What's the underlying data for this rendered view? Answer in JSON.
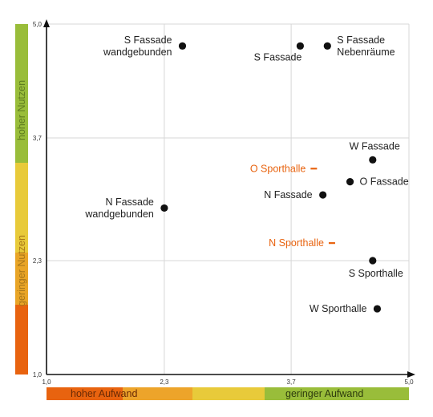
{
  "chart_data": {
    "type": "scatter",
    "title": "",
    "xlabel": "",
    "ylabel": "",
    "xlim": [
      1.0,
      5.0
    ],
    "ylim": [
      1.0,
      5.0
    ],
    "x_ticks": [
      {
        "value": 1.0,
        "label": "1,0"
      },
      {
        "value": 2.3,
        "label": "2,3"
      },
      {
        "value": 3.7,
        "label": "3,7"
      },
      {
        "value": 5.0,
        "label": "5,0"
      }
    ],
    "y_ticks": [
      {
        "value": 1.0,
        "label": "1,0"
      },
      {
        "value": 2.3,
        "label": "2,3"
      },
      {
        "value": 3.7,
        "label": "3,7"
      },
      {
        "value": 5.0,
        "label": "5,0"
      }
    ],
    "grid": true,
    "points": [
      {
        "label": [
          "S Fassade",
          "wandgebunden"
        ],
        "x": 2.5,
        "y": 4.75,
        "label_side": "left"
      },
      {
        "label": [
          "S Fassade"
        ],
        "x": 3.8,
        "y": 4.75,
        "label_side": "below-left"
      },
      {
        "label": [
          "S Fassade",
          "Nebenräume"
        ],
        "x": 4.1,
        "y": 4.75,
        "label_side": "right"
      },
      {
        "label": [
          "W Fassade"
        ],
        "x": 4.6,
        "y": 3.45,
        "label_side": "above"
      },
      {
        "label": [
          "O Fassade"
        ],
        "x": 4.35,
        "y": 3.2,
        "label_side": "right"
      },
      {
        "label": [
          "N Fassade"
        ],
        "x": 4.05,
        "y": 3.05,
        "label_side": "left"
      },
      {
        "label": [
          "N Fassade",
          "wandgebunden"
        ],
        "x": 2.3,
        "y": 2.9,
        "label_side": "left"
      },
      {
        "label": [
          "S Sporthalle"
        ],
        "x": 4.6,
        "y": 2.3,
        "label_side": "below"
      },
      {
        "label": [
          "W Sporthalle"
        ],
        "x": 4.65,
        "y": 1.75,
        "label_side": "left"
      }
    ],
    "markers": [
      {
        "label": "O Sporthalle",
        "x": 3.95,
        "y": 3.35,
        "marker": "dash",
        "color": "#e8630f"
      },
      {
        "label": "N Sporthalle",
        "x": 4.15,
        "y": 2.5,
        "marker": "dash",
        "color": "#e8630f"
      }
    ],
    "y_band": {
      "label_top": "hoher Nutzen",
      "label_bottom": "geringer Nutzen",
      "colors": [
        "#e8630f",
        "#e9a527",
        "#e8ca3a",
        "#99bd3a"
      ]
    },
    "x_band": {
      "label_left": "hoher Aufwand",
      "label_right": "geringer Aufwand",
      "colors": [
        "#e8630f",
        "#eda42a",
        "#e8ca3a",
        "#99bd3a"
      ]
    }
  }
}
